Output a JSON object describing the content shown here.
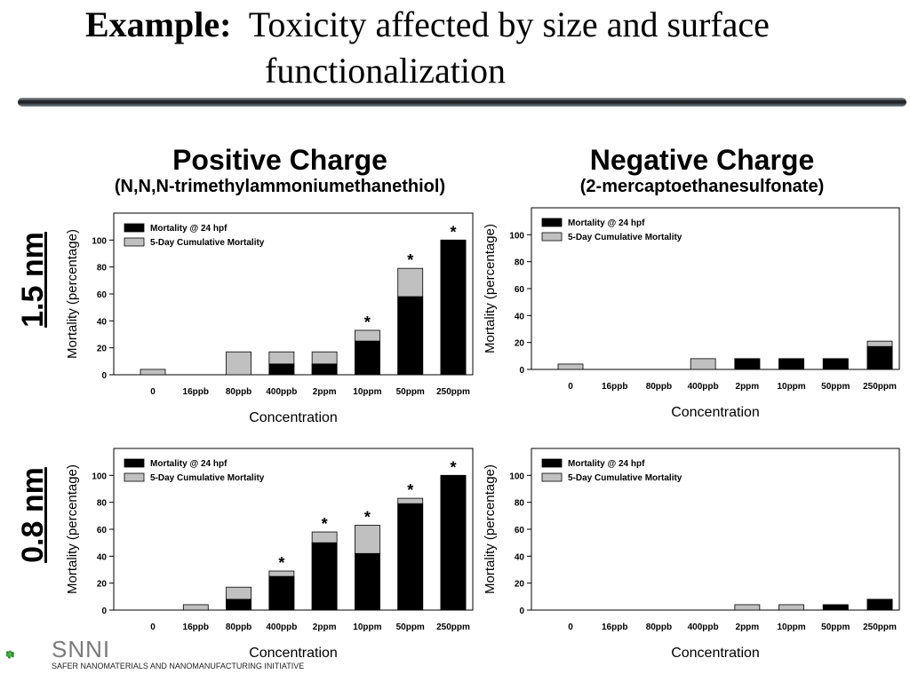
{
  "slide": {
    "title_lead": "Example:",
    "title_rest": "Toxicity affected by size and surface",
    "title_line2": "functionalization"
  },
  "columns": {
    "positive": {
      "title": "Positive Charge",
      "subtitle": "(N,N,N-trimethylammoniumethanethiol)"
    },
    "negative": {
      "title": "Negative Charge",
      "subtitle": "(2-mercaptoethanesulfonate)"
    }
  },
  "rows": {
    "top": "1.5 nm",
    "bottom": "0.8 nm"
  },
  "logo": {
    "name": "SNNI",
    "tagline": "SAFER NANOMATERIALS AND NANOMANUFACTURING INITIATIVE"
  },
  "colors": {
    "mortality_24h": "#000000",
    "cumulative": "#c0c0c0"
  },
  "chart_data": [
    {
      "id": "pos-1.5",
      "type": "bar",
      "xlabel": "Concentration",
      "ylabel": "Mortality (percentage)",
      "ylim": [
        0,
        120
      ],
      "yticks": [
        "0",
        "20",
        "40",
        "60",
        "80",
        "100"
      ],
      "categories": [
        "0",
        "16ppb",
        "80ppb",
        "400ppb",
        "2ppm",
        "10ppm",
        "50ppm",
        "250ppm"
      ],
      "series": [
        {
          "name": "Mortality @ 24 hpf",
          "values": [
            0,
            0,
            0,
            8,
            8,
            25,
            58,
            100
          ]
        },
        {
          "name": "5-Day Cumulative Mortality",
          "values": [
            4,
            0,
            17,
            17,
            17,
            33,
            79,
            100
          ]
        }
      ],
      "significant": [
        false,
        false,
        false,
        false,
        false,
        true,
        true,
        true
      ],
      "legend_position": "top-left"
    },
    {
      "id": "neg-1.5",
      "type": "bar",
      "xlabel": "Concentration",
      "ylabel": "Mortality (percentage)",
      "ylim": [
        0,
        120
      ],
      "yticks": [
        "0",
        "20",
        "40",
        "60",
        "80",
        "100"
      ],
      "categories": [
        "0",
        "16ppb",
        "80ppb",
        "400ppb",
        "2ppm",
        "10ppm",
        "50ppm",
        "250ppm"
      ],
      "series": [
        {
          "name": "Mortality @ 24 hpf",
          "values": [
            0,
            0,
            0,
            0,
            8,
            8,
            8,
            17
          ]
        },
        {
          "name": "5-Day Cumulative Mortality",
          "values": [
            4,
            0,
            0,
            8,
            8,
            8,
            8,
            21
          ]
        }
      ],
      "significant": [
        false,
        false,
        false,
        false,
        false,
        false,
        false,
        false
      ],
      "legend_position": "top-left"
    },
    {
      "id": "pos-0.8",
      "type": "bar",
      "xlabel": "Concentration",
      "ylabel": "Mortality (percentage)",
      "ylim": [
        0,
        120
      ],
      "yticks": [
        "0",
        "20",
        "40",
        "60",
        "80",
        "100"
      ],
      "categories": [
        "0",
        "16ppb",
        "80ppb",
        "400ppb",
        "2ppm",
        "10ppm",
        "50ppm",
        "250ppm"
      ],
      "series": [
        {
          "name": "Mortality @ 24 hpf",
          "values": [
            0,
            0,
            8,
            25,
            50,
            42,
            79,
            100
          ]
        },
        {
          "name": "5-Day Cumulative Mortality",
          "values": [
            0,
            4,
            17,
            29,
            58,
            63,
            83,
            100
          ]
        }
      ],
      "significant": [
        false,
        false,
        false,
        true,
        true,
        true,
        true,
        true
      ],
      "legend_position": "top-left"
    },
    {
      "id": "neg-0.8",
      "type": "bar",
      "xlabel": "Concentration",
      "ylabel": "Mortality (percentage)",
      "ylim": [
        0,
        120
      ],
      "yticks": [
        "0",
        "20",
        "40",
        "60",
        "80",
        "100"
      ],
      "categories": [
        "0",
        "16ppb",
        "80ppb",
        "400ppb",
        "2ppm",
        "10ppm",
        "50ppm",
        "250ppm"
      ],
      "series": [
        {
          "name": "Mortality @ 24 hpf",
          "values": [
            0,
            0,
            0,
            0,
            0,
            0,
            4,
            8
          ]
        },
        {
          "name": "5-Day Cumulative Mortality",
          "values": [
            0,
            0,
            0,
            0,
            4,
            4,
            4,
            8
          ]
        }
      ],
      "significant": [
        false,
        false,
        false,
        false,
        false,
        false,
        false,
        false
      ],
      "legend_position": "top-left"
    }
  ]
}
